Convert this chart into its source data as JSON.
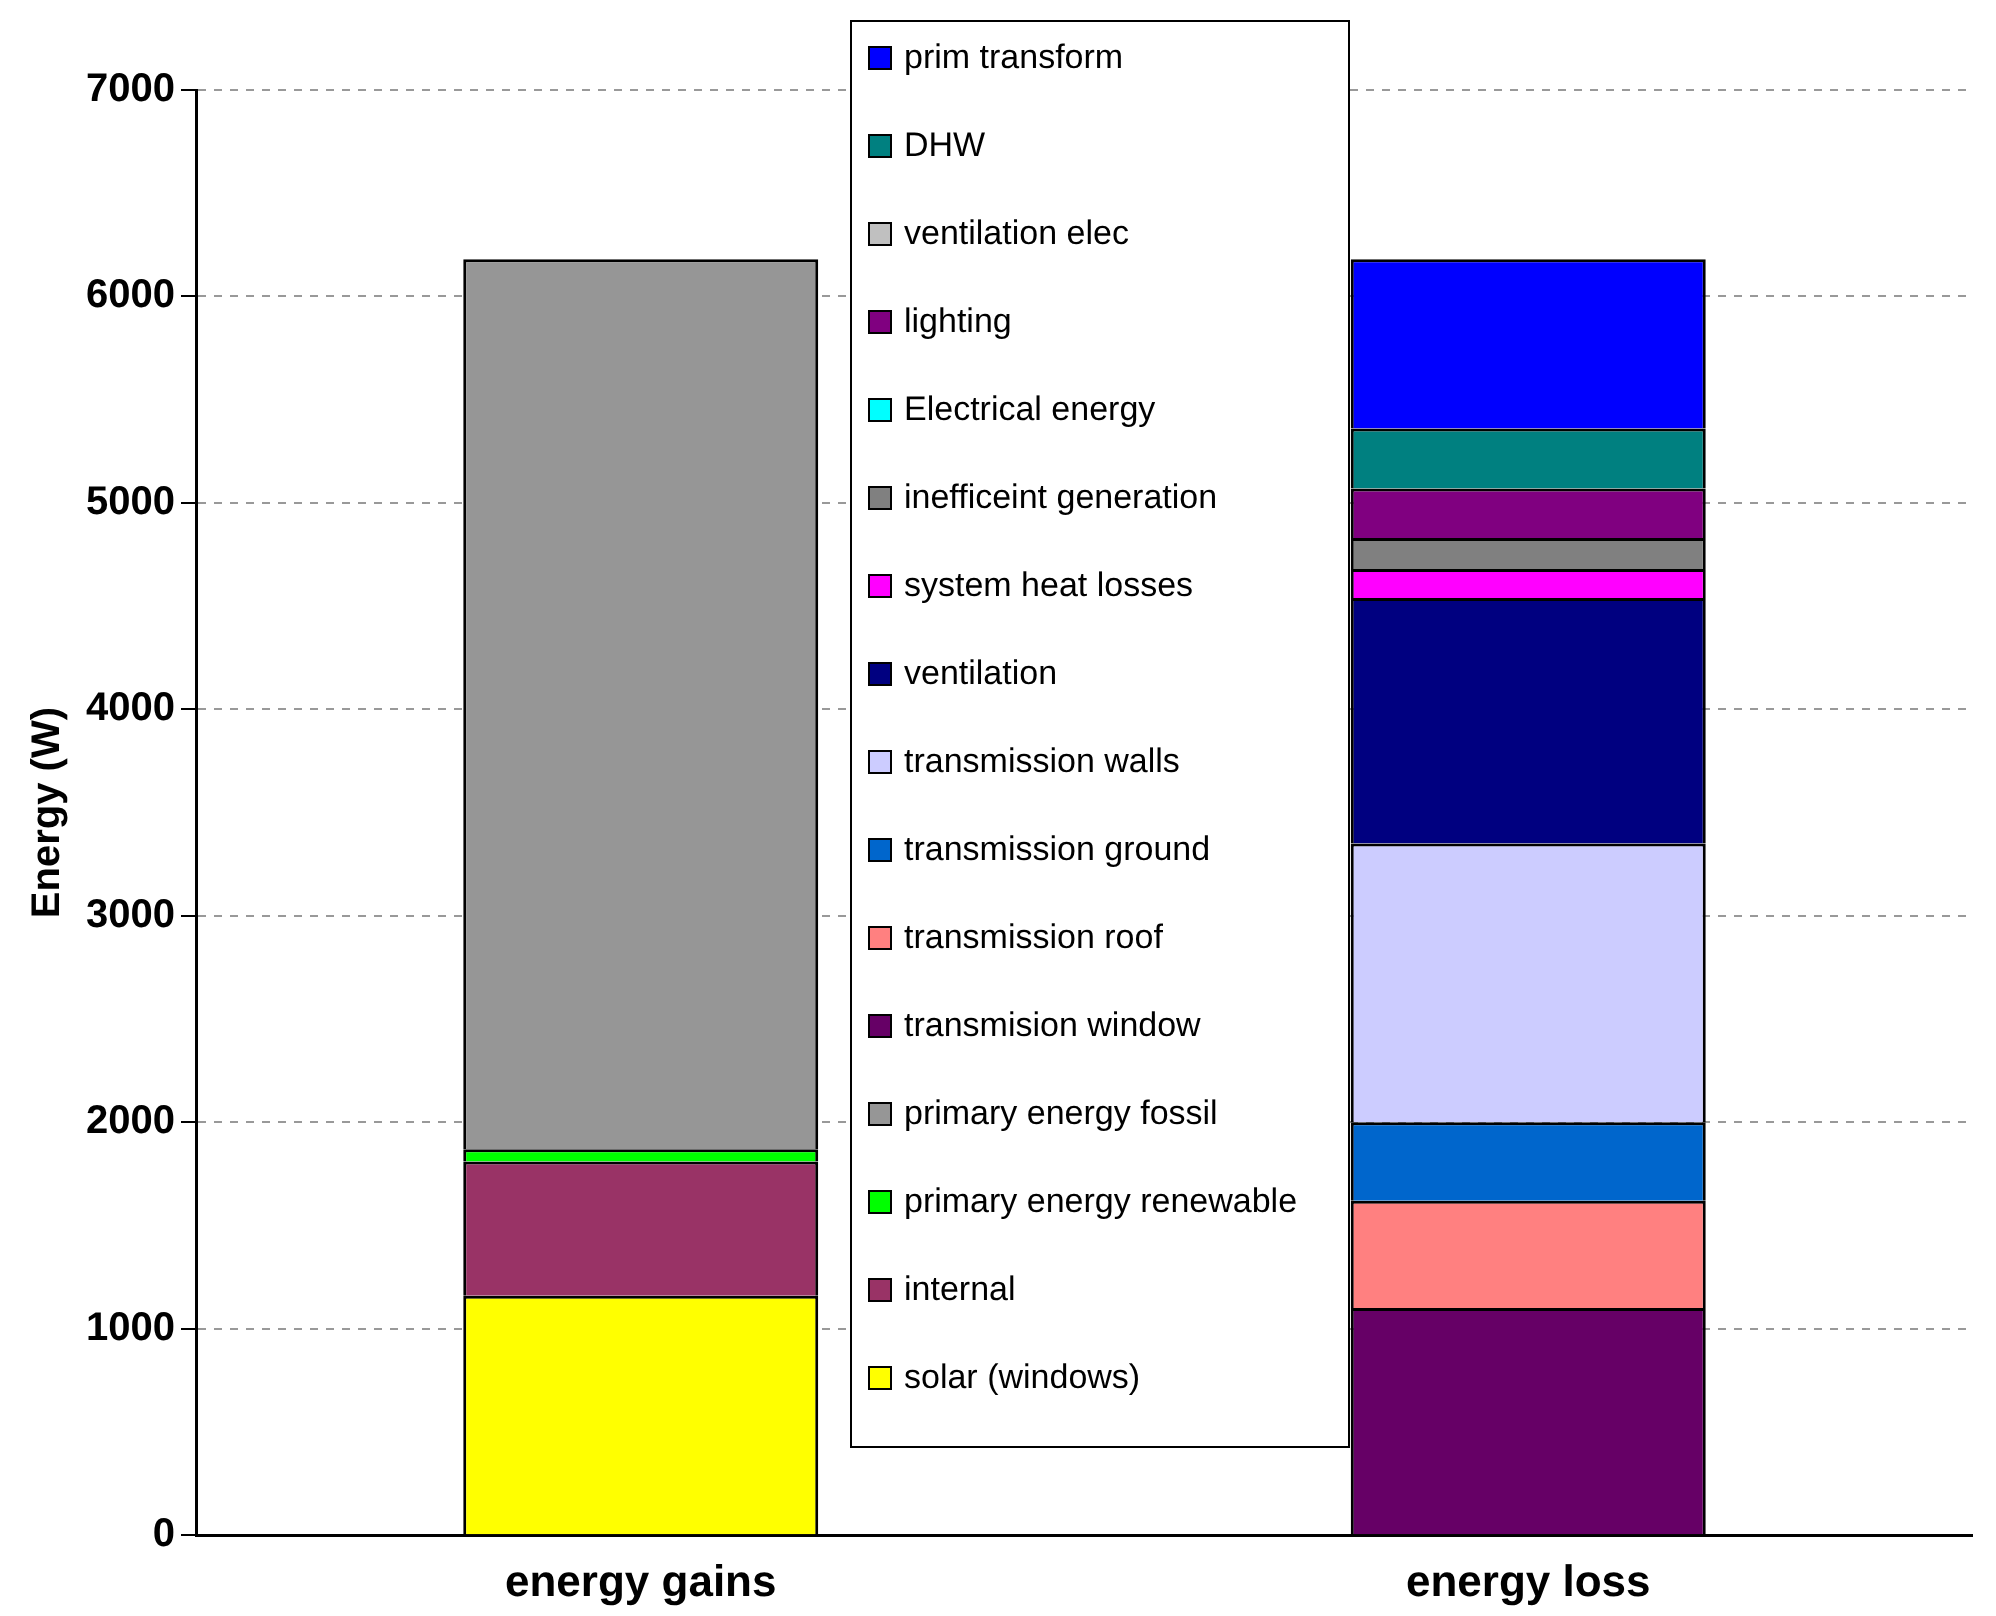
{
  "chart_data": {
    "type": "bar",
    "stacked": true,
    "ylabel": "Energy (W)",
    "categories": [
      "energy gains",
      "energy loss"
    ],
    "ylim": [
      0,
      7000
    ],
    "yticks": [
      0,
      1000,
      2000,
      3000,
      4000,
      5000,
      6000,
      7000
    ],
    "grid": "y",
    "legend": "top",
    "series": [
      {
        "name": "solar (windows)",
        "color": "#ffff00",
        "values": [
          1160,
          null
        ]
      },
      {
        "name": "internal",
        "color": "#993366",
        "values": [
          650,
          null
        ]
      },
      {
        "name": "primary energy renewable",
        "color": "#00ff00",
        "values": [
          60,
          null
        ]
      },
      {
        "name": "primary energy fossil",
        "color": "#969696",
        "values": [
          4310,
          null
        ]
      },
      {
        "name": "transmision window",
        "color": "#660066",
        "values": [
          null,
          1100
        ]
      },
      {
        "name": "transmission roof",
        "color": "#ff8080",
        "values": [
          null,
          520
        ]
      },
      {
        "name": "transmission ground",
        "color": "#0066cc",
        "values": [
          null,
          380
        ]
      },
      {
        "name": "transmission walls",
        "color": "#ccccff",
        "values": [
          null,
          1350
        ]
      },
      {
        "name": "ventilation",
        "color": "#000080",
        "values": [
          null,
          1190
        ]
      },
      {
        "name": "system heat losses",
        "color": "#ff00ff",
        "values": [
          null,
          140
        ]
      },
      {
        "name": "inefficeint generation",
        "color": "#808080",
        "values": [
          null,
          150
        ]
      },
      {
        "name": "Electrical energy",
        "color": "#00ffff",
        "values": [
          null,
          0
        ]
      },
      {
        "name": "lighting",
        "color": "#800080",
        "values": [
          null,
          240
        ]
      },
      {
        "name": "ventilation elec",
        "color": "#c0c0c0",
        "values": [
          null,
          0
        ]
      },
      {
        "name": "DHW",
        "color": "#008080",
        "values": [
          null,
          290
        ]
      },
      {
        "name": "prim transform",
        "color": "#0000ff",
        "values": [
          null,
          820
        ]
      }
    ]
  }
}
